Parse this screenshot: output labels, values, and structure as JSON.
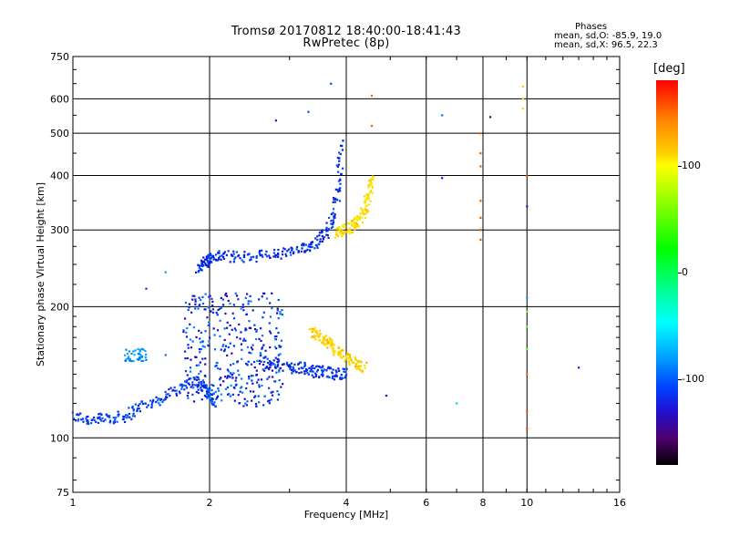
{
  "chart_data": {
    "type": "scatter",
    "title": "Tromsø 20170812 18:40:00-18:41:43",
    "subtitle": "RwPretec (8p)",
    "xlabel": "Frequency [MHz]",
    "ylabel": "Stationary phase Virtual Height [km]",
    "x_scale": "log",
    "y_scale": "log",
    "xlim": [
      1,
      16
    ],
    "ylim": [
      75,
      750
    ],
    "x_ticks": [
      "1",
      "2",
      "4",
      "6",
      "8",
      "10",
      "16"
    ],
    "y_ticks": [
      "75",
      "100",
      "200",
      "300",
      "400",
      "500",
      "600",
      "750"
    ],
    "grid": true,
    "stats": {
      "header": "Phases",
      "o_mode": "mean, sd,O: -85.9, 19.0",
      "x_mode": "mean, sd,X: 96.5, 22.3"
    },
    "colorbar": {
      "label": "[deg]",
      "ticks": [
        "100",
        "0",
        "-100"
      ],
      "range": [
        -180,
        180
      ]
    },
    "traces": [
      {
        "x": [
          1.0,
          1.1,
          1.2,
          1.3,
          1.4,
          1.55,
          1.7,
          1.85,
          1.95,
          2.0,
          2.05
        ],
        "y": [
          112,
          110,
          111,
          112,
          118,
          122,
          130,
          135,
          130,
          125,
          120
        ],
        "phase": -95
      },
      {
        "x": [
          1.88,
          1.95,
          2.0,
          2.1,
          2.3,
          2.6,
          2.9,
          3.2,
          3.4,
          3.6,
          3.75,
          3.85,
          3.9
        ],
        "y": [
          245,
          252,
          258,
          262,
          260,
          262,
          265,
          270,
          280,
          295,
          320,
          380,
          480
        ],
        "phase": -100
      },
      {
        "x": [
          3.8,
          3.95,
          4.1,
          4.25,
          4.4,
          4.5,
          4.55
        ],
        "y": [
          295,
          300,
          305,
          315,
          335,
          365,
          400
        ],
        "phase": 105
      },
      {
        "x": [
          2.6,
          2.8,
          3.0,
          3.2,
          3.4,
          3.6,
          3.8,
          4.0
        ],
        "y": [
          150,
          148,
          145,
          145,
          142,
          142,
          140,
          141
        ],
        "phase": -100
      },
      {
        "x": [
          3.35,
          3.5,
          3.65,
          3.8,
          4.0,
          4.2,
          4.4
        ],
        "y": [
          175,
          170,
          165,
          158,
          152,
          148,
          145
        ],
        "phase": 110
      }
    ],
    "x_mode_echoes": [
      {
        "x": 4.55,
        "y": 610,
        "phase": 150
      },
      {
        "x": 4.55,
        "y": 520,
        "phase": 150
      },
      {
        "x": 7.9,
        "y": 500,
        "phase": 155
      },
      {
        "x": 7.9,
        "y": 450,
        "phase": 155
      },
      {
        "x": 7.9,
        "y": 420,
        "phase": 155
      },
      {
        "x": 7.9,
        "y": 350,
        "phase": 155
      },
      {
        "x": 7.9,
        "y": 320,
        "phase": 155
      },
      {
        "x": 7.9,
        "y": 300,
        "phase": 155
      },
      {
        "x": 7.9,
        "y": 285,
        "phase": 155
      },
      {
        "x": 9.8,
        "y": 640,
        "phase": 115
      },
      {
        "x": 9.8,
        "y": 600,
        "phase": 110
      },
      {
        "x": 9.8,
        "y": 570,
        "phase": 110
      },
      {
        "x": 10.0,
        "y": 400,
        "phase": 160
      },
      {
        "x": 10.0,
        "y": 195,
        "phase": 30
      },
      {
        "x": 10.0,
        "y": 180,
        "phase": 30
      },
      {
        "x": 10.0,
        "y": 160,
        "phase": 30
      },
      {
        "x": 10.0,
        "y": 140,
        "phase": 150
      },
      {
        "x": 10.0,
        "y": 115,
        "phase": 160
      },
      {
        "x": 10.0,
        "y": 105,
        "phase": 160
      }
    ],
    "o_mode_echoes": [
      {
        "x": 3.7,
        "y": 650,
        "phase": -90
      },
      {
        "x": 3.3,
        "y": 560,
        "phase": -90
      },
      {
        "x": 2.8,
        "y": 535,
        "phase": -110
      },
      {
        "x": 6.5,
        "y": 550,
        "phase": -80
      },
      {
        "x": 8.3,
        "y": 545,
        "phase": -150
      },
      {
        "x": 6.5,
        "y": 395,
        "phase": -100
      },
      {
        "x": 10.0,
        "y": 340,
        "phase": -110
      },
      {
        "x": 10.0,
        "y": 210,
        "phase": -70
      },
      {
        "x": 1.6,
        "y": 240,
        "phase": -70
      },
      {
        "x": 1.45,
        "y": 220,
        "phase": -95
      },
      {
        "x": 1.6,
        "y": 155,
        "phase": -80
      },
      {
        "x": 13.0,
        "y": 145,
        "phase": -100
      },
      {
        "x": 4.9,
        "y": 125,
        "phase": -110
      },
      {
        "x": 7.0,
        "y": 120,
        "phase": -50
      }
    ]
  }
}
